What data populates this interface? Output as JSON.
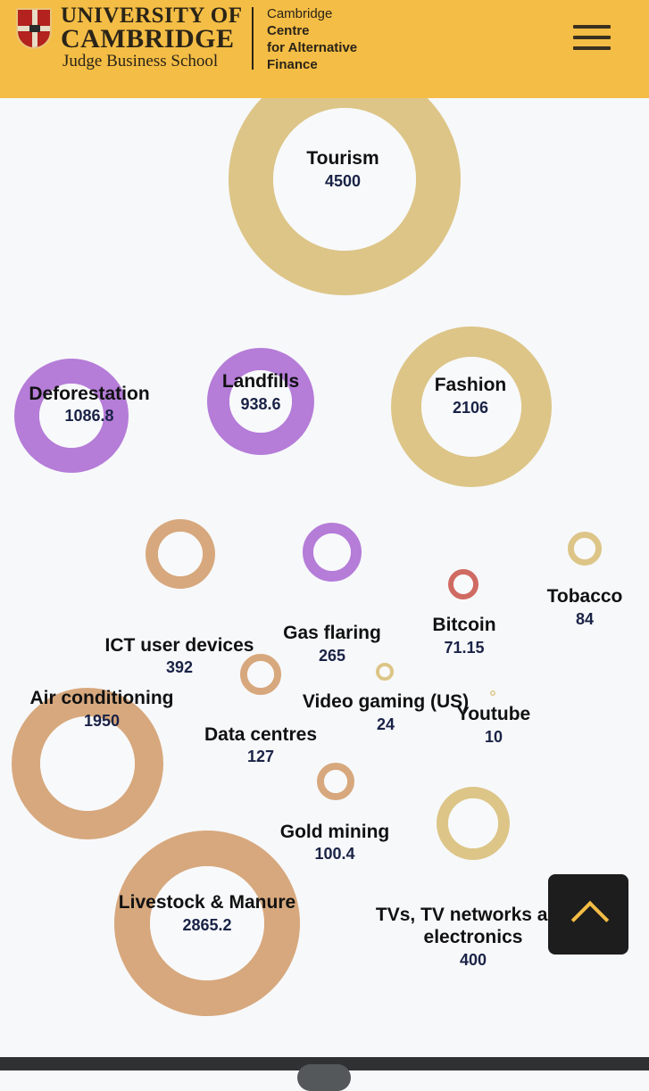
{
  "header": {
    "university_line1": "UNIVERSITY OF",
    "university_line2": "CAMBRIDGE",
    "school": "Judge Business School",
    "centre_line1": "Cambridge",
    "centre_line2": "Centre",
    "centre_line3": "for Alternative",
    "centre_line4": "Finance",
    "menu_icon": "hamburger-menu-icon",
    "brand_color": "#f4bd45"
  },
  "chart_data": {
    "type": "bubble",
    "title": "",
    "series": [
      {
        "label": "Tourism",
        "value": 4500,
        "color": "#dcc587"
      },
      {
        "label": "Deforestation",
        "value": 1086.8,
        "color": "#b57cd8"
      },
      {
        "label": "Landfills",
        "value": 938.6,
        "color": "#b57cd8"
      },
      {
        "label": "Fashion",
        "value": 2106,
        "color": "#dcc587"
      },
      {
        "label": "Tobacco",
        "value": 84,
        "color": "#dcc587"
      },
      {
        "label": "Bitcoin",
        "value": 71.15,
        "color": "#cf6b62"
      },
      {
        "label": "Gas flaring",
        "value": 265,
        "color": "#b57cd8"
      },
      {
        "label": "ICT user devices",
        "value": 392,
        "color": "#d7a87d"
      },
      {
        "label": "Air conditioning",
        "value": 1950,
        "color": "#d7a87d"
      },
      {
        "label": "Data centres",
        "value": 127,
        "color": "#d7a87d"
      },
      {
        "label": "Video gaming (US)",
        "value": 24,
        "color": "#dcc587"
      },
      {
        "label": "Youtube",
        "value": 10,
        "color": "#dcc587"
      },
      {
        "label": "Gold mining",
        "value": 100.4,
        "color": "#d7a87d"
      },
      {
        "label": "Livestock & Manure",
        "value": 2865.2,
        "color": "#d7a87d"
      },
      {
        "label": "TVs, TV networks and",
        "label2": "electronics",
        "value": 400,
        "color": "#dcc587"
      }
    ]
  },
  "controls": {
    "scroll_top_icon": "chevron-up-icon"
  }
}
